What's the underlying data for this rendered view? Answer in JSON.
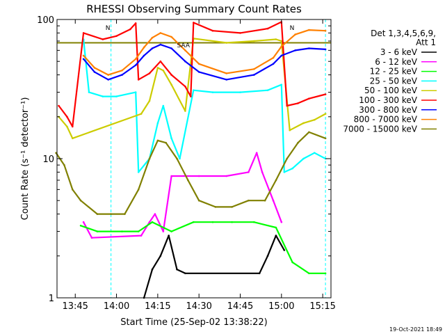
{
  "chart_data": {
    "type": "line",
    "title": "RHESSI Observing Summary Count Rates",
    "xlabel": "Start Time (25-Sep-02 13:38:22)",
    "ylabel": "Count Rate (s⁻¹ detector⁻¹)",
    "y_scale": "log",
    "ylim": [
      1,
      100
    ],
    "xlim": [
      "13:38:22",
      "15:18:00"
    ],
    "x_ticks": [
      "13:45",
      "14:00",
      "14:15",
      "14:30",
      "14:45",
      "15:00",
      "15:15"
    ],
    "y_ticks": [
      "1",
      "10",
      "100"
    ],
    "legend_header": [
      "Det 1,3,4,5,6,9,",
      "Att 1"
    ],
    "legend_position": "right",
    "timestamp": "19-Oct-2021 18:49",
    "flag_labels": [
      "N",
      "SAA",
      "N"
    ],
    "series": [
      {
        "name": "3 - 6 keV",
        "color": "#000000",
        "points": [
          [
            "14:10",
            1.0
          ],
          [
            "14:13",
            1.6
          ],
          [
            "14:16",
            2.0
          ],
          [
            "14:19",
            2.8
          ],
          [
            "14:22",
            1.6
          ],
          [
            "14:25",
            1.5
          ],
          [
            "14:52",
            1.5
          ],
          [
            "14:55",
            2.0
          ],
          [
            "14:58",
            2.8
          ],
          [
            "15:01",
            2.2
          ]
        ]
      },
      {
        "name": "6 - 12 keV",
        "color": "#ff00ff",
        "points": [
          [
            "13:48",
            3.5
          ],
          [
            "13:51",
            2.7
          ],
          [
            "14:09",
            2.8
          ],
          [
            "14:12",
            3.5
          ],
          [
            "14:14",
            4.0
          ],
          [
            "14:17",
            3.0
          ],
          [
            "14:20",
            7.5
          ],
          [
            "14:30",
            7.5
          ],
          [
            "14:40",
            7.5
          ],
          [
            "14:48",
            8.0
          ],
          [
            "14:51",
            11.0
          ],
          [
            "14:53",
            8.0
          ],
          [
            "14:57",
            5.0
          ],
          [
            "15:00",
            3.5
          ]
        ]
      },
      {
        "name": "12 - 25 keV",
        "color": "#00ff00",
        "points": [
          [
            "13:47",
            3.3
          ],
          [
            "13:53",
            3.0
          ],
          [
            "14:02",
            3.0
          ],
          [
            "14:08",
            3.0
          ],
          [
            "14:13",
            3.5
          ],
          [
            "14:20",
            3.0
          ],
          [
            "14:28",
            3.5
          ],
          [
            "14:35",
            3.5
          ],
          [
            "14:42",
            3.5
          ],
          [
            "14:50",
            3.5
          ],
          [
            "14:58",
            3.2
          ],
          [
            "15:04",
            1.8
          ],
          [
            "15:10",
            1.5
          ],
          [
            "15:16",
            1.5
          ]
        ]
      },
      {
        "name": "25 - 50 keV",
        "color": "#00ffff",
        "points": [
          [
            "13:48",
            72
          ],
          [
            "13:50",
            30
          ],
          [
            "13:55",
            28
          ],
          [
            "14:00",
            28
          ],
          [
            "14:07",
            30
          ],
          [
            "14:08",
            8.0
          ],
          [
            "14:12",
            10
          ],
          [
            "14:15",
            18
          ],
          [
            "14:17",
            24
          ],
          [
            "14:20",
            14
          ],
          [
            "14:23",
            10
          ],
          [
            "14:28",
            31
          ],
          [
            "14:35",
            30
          ],
          [
            "14:45",
            30
          ],
          [
            "14:55",
            31
          ],
          [
            "15:00",
            34
          ],
          [
            "15:01",
            8
          ],
          [
            "15:04",
            8.5
          ],
          [
            "15:08",
            10
          ],
          [
            "15:12",
            11
          ],
          [
            "15:16",
            10
          ]
        ]
      },
      {
        "name": "50 - 100 keV",
        "color": "#cccc00",
        "points": [
          [
            "13:39",
            20
          ],
          [
            "13:42",
            17
          ],
          [
            "13:44",
            14
          ],
          [
            "14:09",
            21
          ],
          [
            "14:12",
            26
          ],
          [
            "14:15",
            45
          ],
          [
            "14:17",
            43
          ],
          [
            "14:20",
            34
          ],
          [
            "14:25",
            22
          ],
          [
            "14:28",
            73
          ],
          [
            "14:40",
            68
          ],
          [
            "14:50",
            70
          ],
          [
            "14:58",
            72
          ],
          [
            "15:00",
            70
          ],
          [
            "15:03",
            16
          ],
          [
            "15:08",
            18
          ],
          [
            "15:12",
            19
          ],
          [
            "15:16",
            21
          ]
        ]
      },
      {
        "name": "100 - 300 keV",
        "color": "#ff0000",
        "points": [
          [
            "13:39",
            24
          ],
          [
            "13:42",
            20
          ],
          [
            "13:44",
            17
          ],
          [
            "13:48",
            80
          ],
          [
            "13:55",
            72
          ],
          [
            "14:00",
            76
          ],
          [
            "14:05",
            85
          ],
          [
            "14:07",
            94
          ],
          [
            "14:08",
            37
          ],
          [
            "14:12",
            41
          ],
          [
            "14:16",
            50
          ],
          [
            "14:20",
            40
          ],
          [
            "14:25",
            33
          ],
          [
            "14:27",
            28
          ],
          [
            "14:28",
            95
          ],
          [
            "14:35",
            83
          ],
          [
            "14:45",
            80
          ],
          [
            "14:55",
            86
          ],
          [
            "15:00",
            96
          ],
          [
            "15:02",
            24
          ],
          [
            "15:06",
            25
          ],
          [
            "15:10",
            27
          ],
          [
            "15:16",
            29
          ]
        ]
      },
      {
        "name": "300 - 800 keV",
        "color": "#0000ff",
        "points": [
          [
            "13:48",
            52
          ],
          [
            "13:52",
            42
          ],
          [
            "13:57",
            37
          ],
          [
            "14:02",
            40
          ],
          [
            "14:07",
            47
          ],
          [
            "14:10",
            55
          ],
          [
            "14:13",
            62
          ],
          [
            "14:16",
            66
          ],
          [
            "14:20",
            62
          ],
          [
            "14:25",
            50
          ],
          [
            "14:30",
            42
          ],
          [
            "14:40",
            37
          ],
          [
            "14:50",
            40
          ],
          [
            "14:57",
            48
          ],
          [
            "15:00",
            55
          ],
          [
            "15:05",
            60
          ],
          [
            "15:10",
            62
          ],
          [
            "15:16",
            61
          ]
        ]
      },
      {
        "name": "800 - 7000 keV",
        "color": "#ff8000",
        "points": [
          [
            "13:48",
            55
          ],
          [
            "13:52",
            45
          ],
          [
            "13:57",
            40
          ],
          [
            "14:02",
            43
          ],
          [
            "14:07",
            52
          ],
          [
            "14:10",
            63
          ],
          [
            "14:13",
            74
          ],
          [
            "14:16",
            80
          ],
          [
            "14:20",
            75
          ],
          [
            "14:25",
            60
          ],
          [
            "14:30",
            48
          ],
          [
            "14:40",
            41
          ],
          [
            "14:50",
            44
          ],
          [
            "14:57",
            53
          ],
          [
            "15:00",
            64
          ],
          [
            "15:05",
            78
          ],
          [
            "15:10",
            84
          ],
          [
            "15:16",
            83
          ]
        ]
      },
      {
        "name": "7000 - 15000 keV",
        "color": "#808000",
        "points": [
          [
            "13:38",
            11
          ],
          [
            "13:41",
            9
          ],
          [
            "13:44",
            6
          ],
          [
            "13:47",
            5
          ],
          [
            "13:53",
            4
          ],
          [
            "13:58",
            4
          ],
          [
            "14:03",
            4
          ],
          [
            "14:08",
            6
          ],
          [
            "14:12",
            10
          ],
          [
            "14:15",
            13.5
          ],
          [
            "14:18",
            13
          ],
          [
            "14:22",
            10
          ],
          [
            "14:26",
            7
          ],
          [
            "14:30",
            5
          ],
          [
            "14:36",
            4.5
          ],
          [
            "14:42",
            4.5
          ],
          [
            "14:48",
            5
          ],
          [
            "14:54",
            5
          ],
          [
            "14:58",
            7
          ],
          [
            "15:02",
            10
          ],
          [
            "15:06",
            13
          ],
          [
            "15:10",
            15.5
          ],
          [
            "15:16",
            14
          ]
        ]
      }
    ],
    "markers": {
      "vertical_dashed_cyan": [
        "13:58",
        "15:16"
      ],
      "horizontal_reference_olive": 68
    }
  }
}
